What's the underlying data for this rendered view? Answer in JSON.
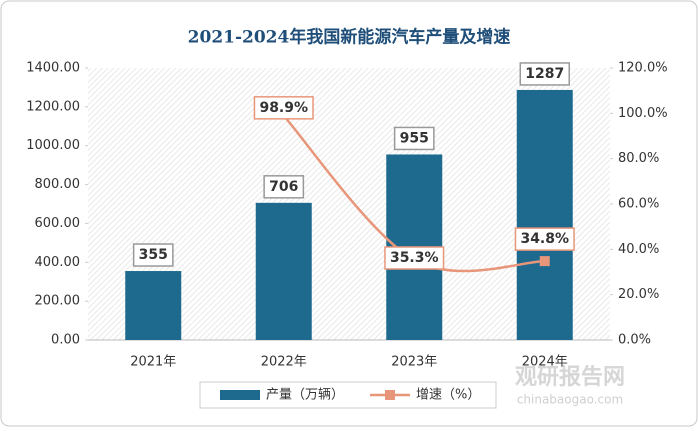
{
  "chart_data": {
    "type": "bar",
    "title": "2021-2024年我国新能源汽车产量及增速",
    "categories": [
      "2021年",
      "2022年",
      "2023年",
      "2024年"
    ],
    "series": [
      {
        "name": "产量（万辆）",
        "type": "bar",
        "color": "#1d6a8e",
        "values": [
          355,
          706,
          955,
          1287
        ]
      },
      {
        "name": "增速（%）",
        "type": "line",
        "axis": "y2",
        "color": "#e8967a",
        "values": [
          null,
          98.9,
          35.3,
          34.8
        ],
        "value_labels": [
          null,
          "98.9%",
          "35.3%",
          "34.8%"
        ]
      }
    ],
    "ylim": [
      0,
      1400
    ],
    "yticks": [
      {
        "value": 0,
        "label": "0.00"
      },
      {
        "value": 200,
        "label": "200.00"
      },
      {
        "value": 400,
        "label": "400.00"
      },
      {
        "value": 600,
        "label": "600.00"
      },
      {
        "value": 800,
        "label": "800.00"
      },
      {
        "value": 1000,
        "label": "1000.00"
      },
      {
        "value": 1200,
        "label": "1200.00"
      },
      {
        "value": 1400,
        "label": "1400.00"
      }
    ],
    "y2lim": [
      0,
      120
    ],
    "y2ticks": [
      {
        "value": 0,
        "label": "0.0%"
      },
      {
        "value": 20,
        "label": "20.0%"
      },
      {
        "value": 40,
        "label": "40.0%"
      },
      {
        "value": 60,
        "label": "60.0%"
      },
      {
        "value": 80,
        "label": "80.0%"
      },
      {
        "value": 100,
        "label": "100.0%"
      },
      {
        "value": 120,
        "label": "120.0%"
      }
    ],
    "legend": "bottom",
    "watermark": [
      "观研报告网",
      "chinabaogao.com"
    ]
  }
}
